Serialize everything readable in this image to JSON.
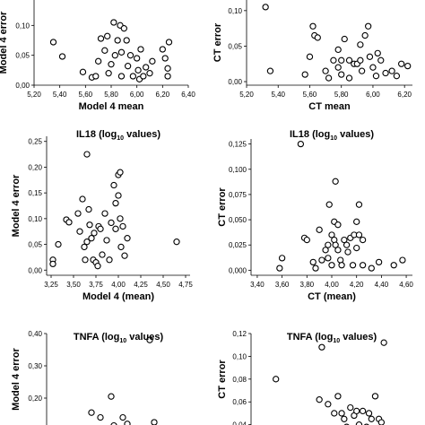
{
  "chart_data": [
    {
      "type": "scatter",
      "title": "",
      "xlabel": "Model 4 mean",
      "ylabel": "Model 4 error",
      "xlim": [
        5.2,
        6.4
      ],
      "ylim": [
        0,
        0.15
      ],
      "xticks": [
        "5,20",
        "5,40",
        "5,60",
        "5,80",
        "6,00",
        "6,20",
        "6,40"
      ],
      "yticks": [
        "0,00",
        "0,05",
        "0,10",
        "0,15"
      ],
      "points": [
        [
          5.35,
          0.072
        ],
        [
          5.42,
          0.048
        ],
        [
          5.58,
          0.022
        ],
        [
          5.65,
          0.013
        ],
        [
          5.68,
          0.015
        ],
        [
          5.7,
          0.04
        ],
        [
          5.72,
          0.078
        ],
        [
          5.75,
          0.058
        ],
        [
          5.77,
          0.082
        ],
        [
          5.78,
          0.02
        ],
        [
          5.8,
          0.035
        ],
        [
          5.82,
          0.105
        ],
        [
          5.83,
          0.05
        ],
        [
          5.85,
          0.075
        ],
        [
          5.87,
          0.1
        ],
        [
          5.88,
          0.055
        ],
        [
          5.88,
          0.015
        ],
        [
          5.9,
          0.095
        ],
        [
          5.92,
          0.075
        ],
        [
          5.93,
          0.032
        ],
        [
          5.95,
          0.05
        ],
        [
          5.97,
          0.015
        ],
        [
          6.0,
          0.045
        ],
        [
          6.01,
          0.025
        ],
        [
          6.02,
          0.01
        ],
        [
          6.03,
          0.06
        ],
        [
          6.05,
          0.015
        ],
        [
          6.07,
          0.03
        ],
        [
          6.1,
          0.02
        ],
        [
          6.12,
          0.04
        ],
        [
          6.2,
          0.06
        ],
        [
          6.22,
          0.045
        ],
        [
          6.24,
          0.028
        ],
        [
          6.24,
          0.015
        ],
        [
          6.25,
          0.072
        ]
      ],
      "grid": false
    },
    {
      "type": "scatter",
      "title": "",
      "xlabel": "CT mean",
      "ylabel": "CT error",
      "xlim": [
        5.2,
        6.25
      ],
      "ylim": [
        -0.005,
        0.12
      ],
      "xticks": [
        "5,20",
        "5,40",
        "5,60",
        "5,80",
        "6,00",
        "6,20"
      ],
      "yticks": [
        "0,00",
        "0,05",
        "0,10"
      ],
      "points": [
        [
          5.32,
          0.105
        ],
        [
          5.35,
          0.015
        ],
        [
          5.57,
          0.01
        ],
        [
          5.6,
          0.035
        ],
        [
          5.62,
          0.078
        ],
        [
          5.63,
          0.065
        ],
        [
          5.65,
          0.062
        ],
        [
          5.7,
          0.015
        ],
        [
          5.72,
          0.005
        ],
        [
          5.75,
          0.03
        ],
        [
          5.78,
          0.02
        ],
        [
          5.78,
          0.045
        ],
        [
          5.8,
          0.03
        ],
        [
          5.8,
          0.01
        ],
        [
          5.82,
          0.06
        ],
        [
          5.85,
          0.03
        ],
        [
          5.85,
          0.005
        ],
        [
          5.88,
          0.025
        ],
        [
          5.9,
          0.025
        ],
        [
          5.92,
          0.052
        ],
        [
          5.92,
          0.03
        ],
        [
          5.93,
          0.015
        ],
        [
          5.95,
          0.065
        ],
        [
          5.97,
          0.078
        ],
        [
          5.98,
          0.035
        ],
        [
          6.0,
          0.02
        ],
        [
          6.02,
          0.008
        ],
        [
          6.03,
          0.04
        ],
        [
          6.05,
          0.03
        ],
        [
          6.08,
          0.012
        ],
        [
          6.12,
          0.015
        ],
        [
          6.15,
          0.008
        ],
        [
          6.18,
          0.025
        ],
        [
          6.22,
          0.022
        ]
      ],
      "grid": false
    },
    {
      "type": "scatter",
      "title": "IL18 (log10 values)",
      "xlabel": "Model 4 (mean)",
      "ylabel": "Model 4 error",
      "xlim": [
        3.2,
        4.8
      ],
      "ylim": [
        -0.01,
        0.26
      ],
      "xticks": [
        "3,25",
        "3,50",
        "3,75",
        "4,00",
        "4,25",
        "4,50",
        "4,75"
      ],
      "yticks": [
        "0,00",
        "0,05",
        "0,10",
        "0,15",
        "0,20",
        "0,25"
      ],
      "points": [
        [
          3.27,
          0.02
        ],
        [
          3.27,
          0.012
        ],
        [
          3.33,
          0.05
        ],
        [
          3.42,
          0.098
        ],
        [
          3.45,
          0.093
        ],
        [
          3.55,
          0.11
        ],
        [
          3.57,
          0.075
        ],
        [
          3.6,
          0.138
        ],
        [
          3.62,
          0.045
        ],
        [
          3.63,
          0.02
        ],
        [
          3.65,
          0.225
        ],
        [
          3.65,
          0.055
        ],
        [
          3.67,
          0.118
        ],
        [
          3.68,
          0.088
        ],
        [
          3.7,
          0.062
        ],
        [
          3.72,
          0.02
        ],
        [
          3.73,
          0.072
        ],
        [
          3.75,
          0.015
        ],
        [
          3.77,
          0.008
        ],
        [
          3.78,
          0.085
        ],
        [
          3.8,
          0.08
        ],
        [
          3.82,
          0.03
        ],
        [
          3.85,
          0.11
        ],
        [
          3.87,
          0.058
        ],
        [
          3.9,
          0.02
        ],
        [
          3.92,
          0.092
        ],
        [
          3.95,
          0.165
        ],
        [
          3.97,
          0.13
        ],
        [
          3.97,
          0.08
        ],
        [
          4.0,
          0.185
        ],
        [
          4.0,
          0.145
        ],
        [
          4.02,
          0.19
        ],
        [
          4.02,
          0.1
        ],
        [
          4.03,
          0.045
        ],
        [
          4.05,
          0.085
        ],
        [
          4.07,
          0.028
        ],
        [
          4.1,
          0.062
        ],
        [
          4.65,
          0.055
        ]
      ],
      "grid": false
    },
    {
      "type": "scatter",
      "title": "IL18 (log10 values)",
      "xlabel": "CT (mean)",
      "ylabel": "CT error",
      "xlim": [
        3.35,
        4.65
      ],
      "ylim": [
        -0.005,
        0.13
      ],
      "xticks": [
        "3,40",
        "3,60",
        "3,80",
        "4,00",
        "4,20",
        "4,40",
        "4,60"
      ],
      "yticks": [
        "0,000",
        "0,025",
        "0,050",
        "0,075",
        "0,100",
        "0,125"
      ],
      "points": [
        [
          3.58,
          0.002
        ],
        [
          3.6,
          0.012
        ],
        [
          3.75,
          0.125
        ],
        [
          3.78,
          0.032
        ],
        [
          3.8,
          0.03
        ],
        [
          3.85,
          0.008
        ],
        [
          3.87,
          0.002
        ],
        [
          3.9,
          0.04
        ],
        [
          3.92,
          0.01
        ],
        [
          3.95,
          0.02
        ],
        [
          3.97,
          0.025
        ],
        [
          3.97,
          0.012
        ],
        [
          3.98,
          0.065
        ],
        [
          4.0,
          0.035
        ],
        [
          4.0,
          0.005
        ],
        [
          4.02,
          0.048
        ],
        [
          4.02,
          0.03
        ],
        [
          4.03,
          0.088
        ],
        [
          4.03,
          0.025
        ],
        [
          4.05,
          0.045
        ],
        [
          4.05,
          0.02
        ],
        [
          4.07,
          0.01
        ],
        [
          4.08,
          0.005
        ],
        [
          4.1,
          0.03
        ],
        [
          4.12,
          0.025
        ],
        [
          4.13,
          0.018
        ],
        [
          4.15,
          0.032
        ],
        [
          4.17,
          0.005
        ],
        [
          4.18,
          0.035
        ],
        [
          4.2,
          0.048
        ],
        [
          4.2,
          0.022
        ],
        [
          4.22,
          0.065
        ],
        [
          4.22,
          0.035
        ],
        [
          4.25,
          0.03
        ],
        [
          4.25,
          0.005
        ],
        [
          4.32,
          0.002
        ],
        [
          4.38,
          0.008
        ],
        [
          4.5,
          0.005
        ],
        [
          4.57,
          0.01
        ]
      ],
      "grid": false
    },
    {
      "type": "scatter",
      "title": "TNFA (log10 values)",
      "xlabel": "",
      "ylabel": "Model 4 error",
      "xlim": [
        3.2,
        4.8
      ],
      "ylim": [
        0.1,
        0.4
      ],
      "xticks": [],
      "yticks": [
        "0,10",
        "0,20",
        "0,30",
        "0,40"
      ],
      "points": [
        [
          3.7,
          0.155
        ],
        [
          3.8,
          0.14
        ],
        [
          3.92,
          0.205
        ],
        [
          3.95,
          0.115
        ],
        [
          4.05,
          0.14
        ],
        [
          4.1,
          0.12
        ],
        [
          4.35,
          0.38
        ],
        [
          4.4,
          0.125
        ]
      ],
      "grid": false
    },
    {
      "type": "scatter",
      "title": "TNFA (log10 values)",
      "xlabel": "",
      "ylabel": "CT error",
      "xlim": [
        3.35,
        4.65
      ],
      "ylim": [
        0.035,
        0.12
      ],
      "xticks": [],
      "yticks": [
        "0,04",
        "0,06",
        "0,08",
        "0,10",
        "0,12"
      ],
      "points": [
        [
          3.55,
          0.08
        ],
        [
          3.9,
          0.062
        ],
        [
          3.92,
          0.108
        ],
        [
          3.97,
          0.058
        ],
        [
          4.02,
          0.05
        ],
        [
          4.05,
          0.065
        ],
        [
          4.08,
          0.05
        ],
        [
          4.1,
          0.045
        ],
        [
          4.12,
          0.038
        ],
        [
          4.15,
          0.055
        ],
        [
          4.18,
          0.048
        ],
        [
          4.2,
          0.052
        ],
        [
          4.22,
          0.04
        ],
        [
          4.25,
          0.052
        ],
        [
          4.28,
          0.038
        ],
        [
          4.3,
          0.05
        ],
        [
          4.32,
          0.045
        ],
        [
          4.35,
          0.065
        ],
        [
          4.38,
          0.045
        ],
        [
          4.4,
          0.042
        ],
        [
          4.42,
          0.112
        ]
      ],
      "grid": false
    }
  ]
}
